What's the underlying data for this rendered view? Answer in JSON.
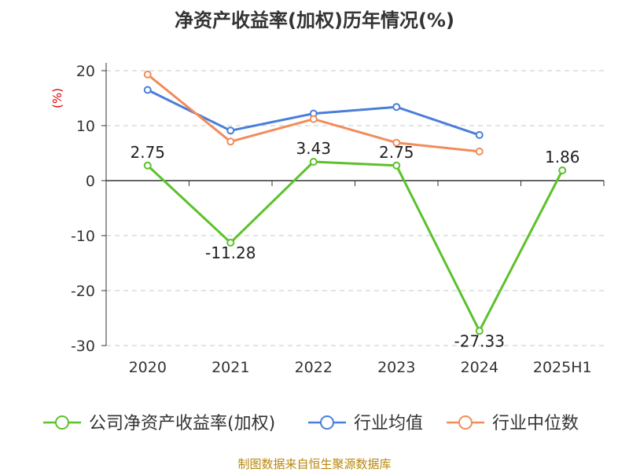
{
  "chart_data": {
    "type": "line",
    "title": "净资产收益率(加权)历年情况(%)",
    "unit": "(%)",
    "categories": [
      "2020",
      "2021",
      "2022",
      "2023",
      "2024",
      "2025H1"
    ],
    "ylim": [
      -30,
      20
    ],
    "yticks": [
      20,
      10,
      0,
      -10,
      -20,
      -30
    ],
    "grid": true,
    "legend_position": "bottom",
    "series": [
      {
        "name": "公司净资产收益率(加权)",
        "color": "#5cc12a",
        "values": [
          2.75,
          -11.28,
          3.43,
          2.75,
          -27.33,
          1.86
        ],
        "labels": [
          "2.75",
          "-11.28",
          "3.43",
          "2.75",
          "-27.33",
          "1.86"
        ]
      },
      {
        "name": "行业均值",
        "color": "#4a7ed9",
        "values": [
          16.5,
          9.1,
          12.2,
          13.4,
          8.3,
          null
        ]
      },
      {
        "name": "行业中位数",
        "color": "#f28c5b",
        "values": [
          19.3,
          7.1,
          11.2,
          6.9,
          5.3,
          null
        ]
      }
    ]
  },
  "source": "制图数据来自恒生聚源数据库"
}
